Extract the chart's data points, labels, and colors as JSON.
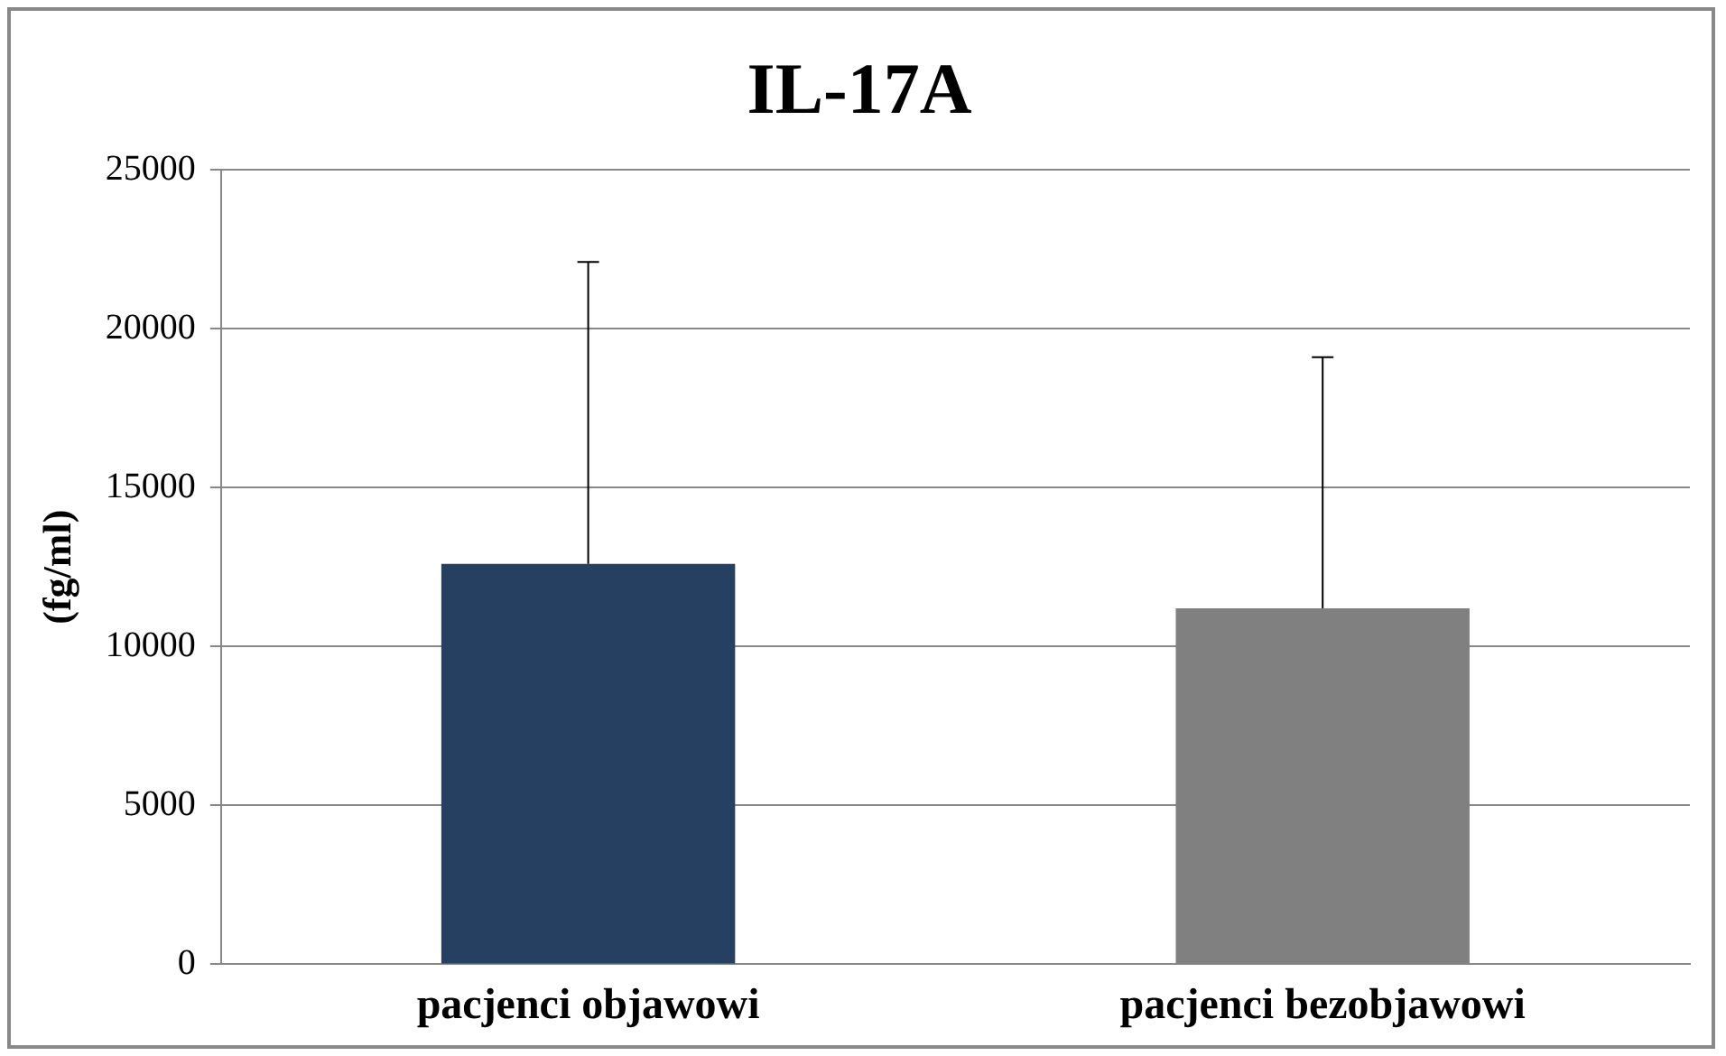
{
  "chart_data": {
    "type": "bar",
    "title": "IL-17A",
    "ylabel": "(fg/ml)",
    "categories": [
      "pacjenci objawowi",
      "pacjenci bezobjawowi"
    ],
    "values": [
      12600,
      11200
    ],
    "colors": [
      "#264061",
      "#808080"
    ],
    "errors": [
      [
        12600,
        22100
      ],
      [
        11200,
        19100
      ]
    ],
    "ylim": [
      0,
      25000
    ],
    "yticks": [
      0,
      5000,
      10000,
      15000,
      20000,
      25000
    ],
    "grid": "y",
    "legend": false
  }
}
